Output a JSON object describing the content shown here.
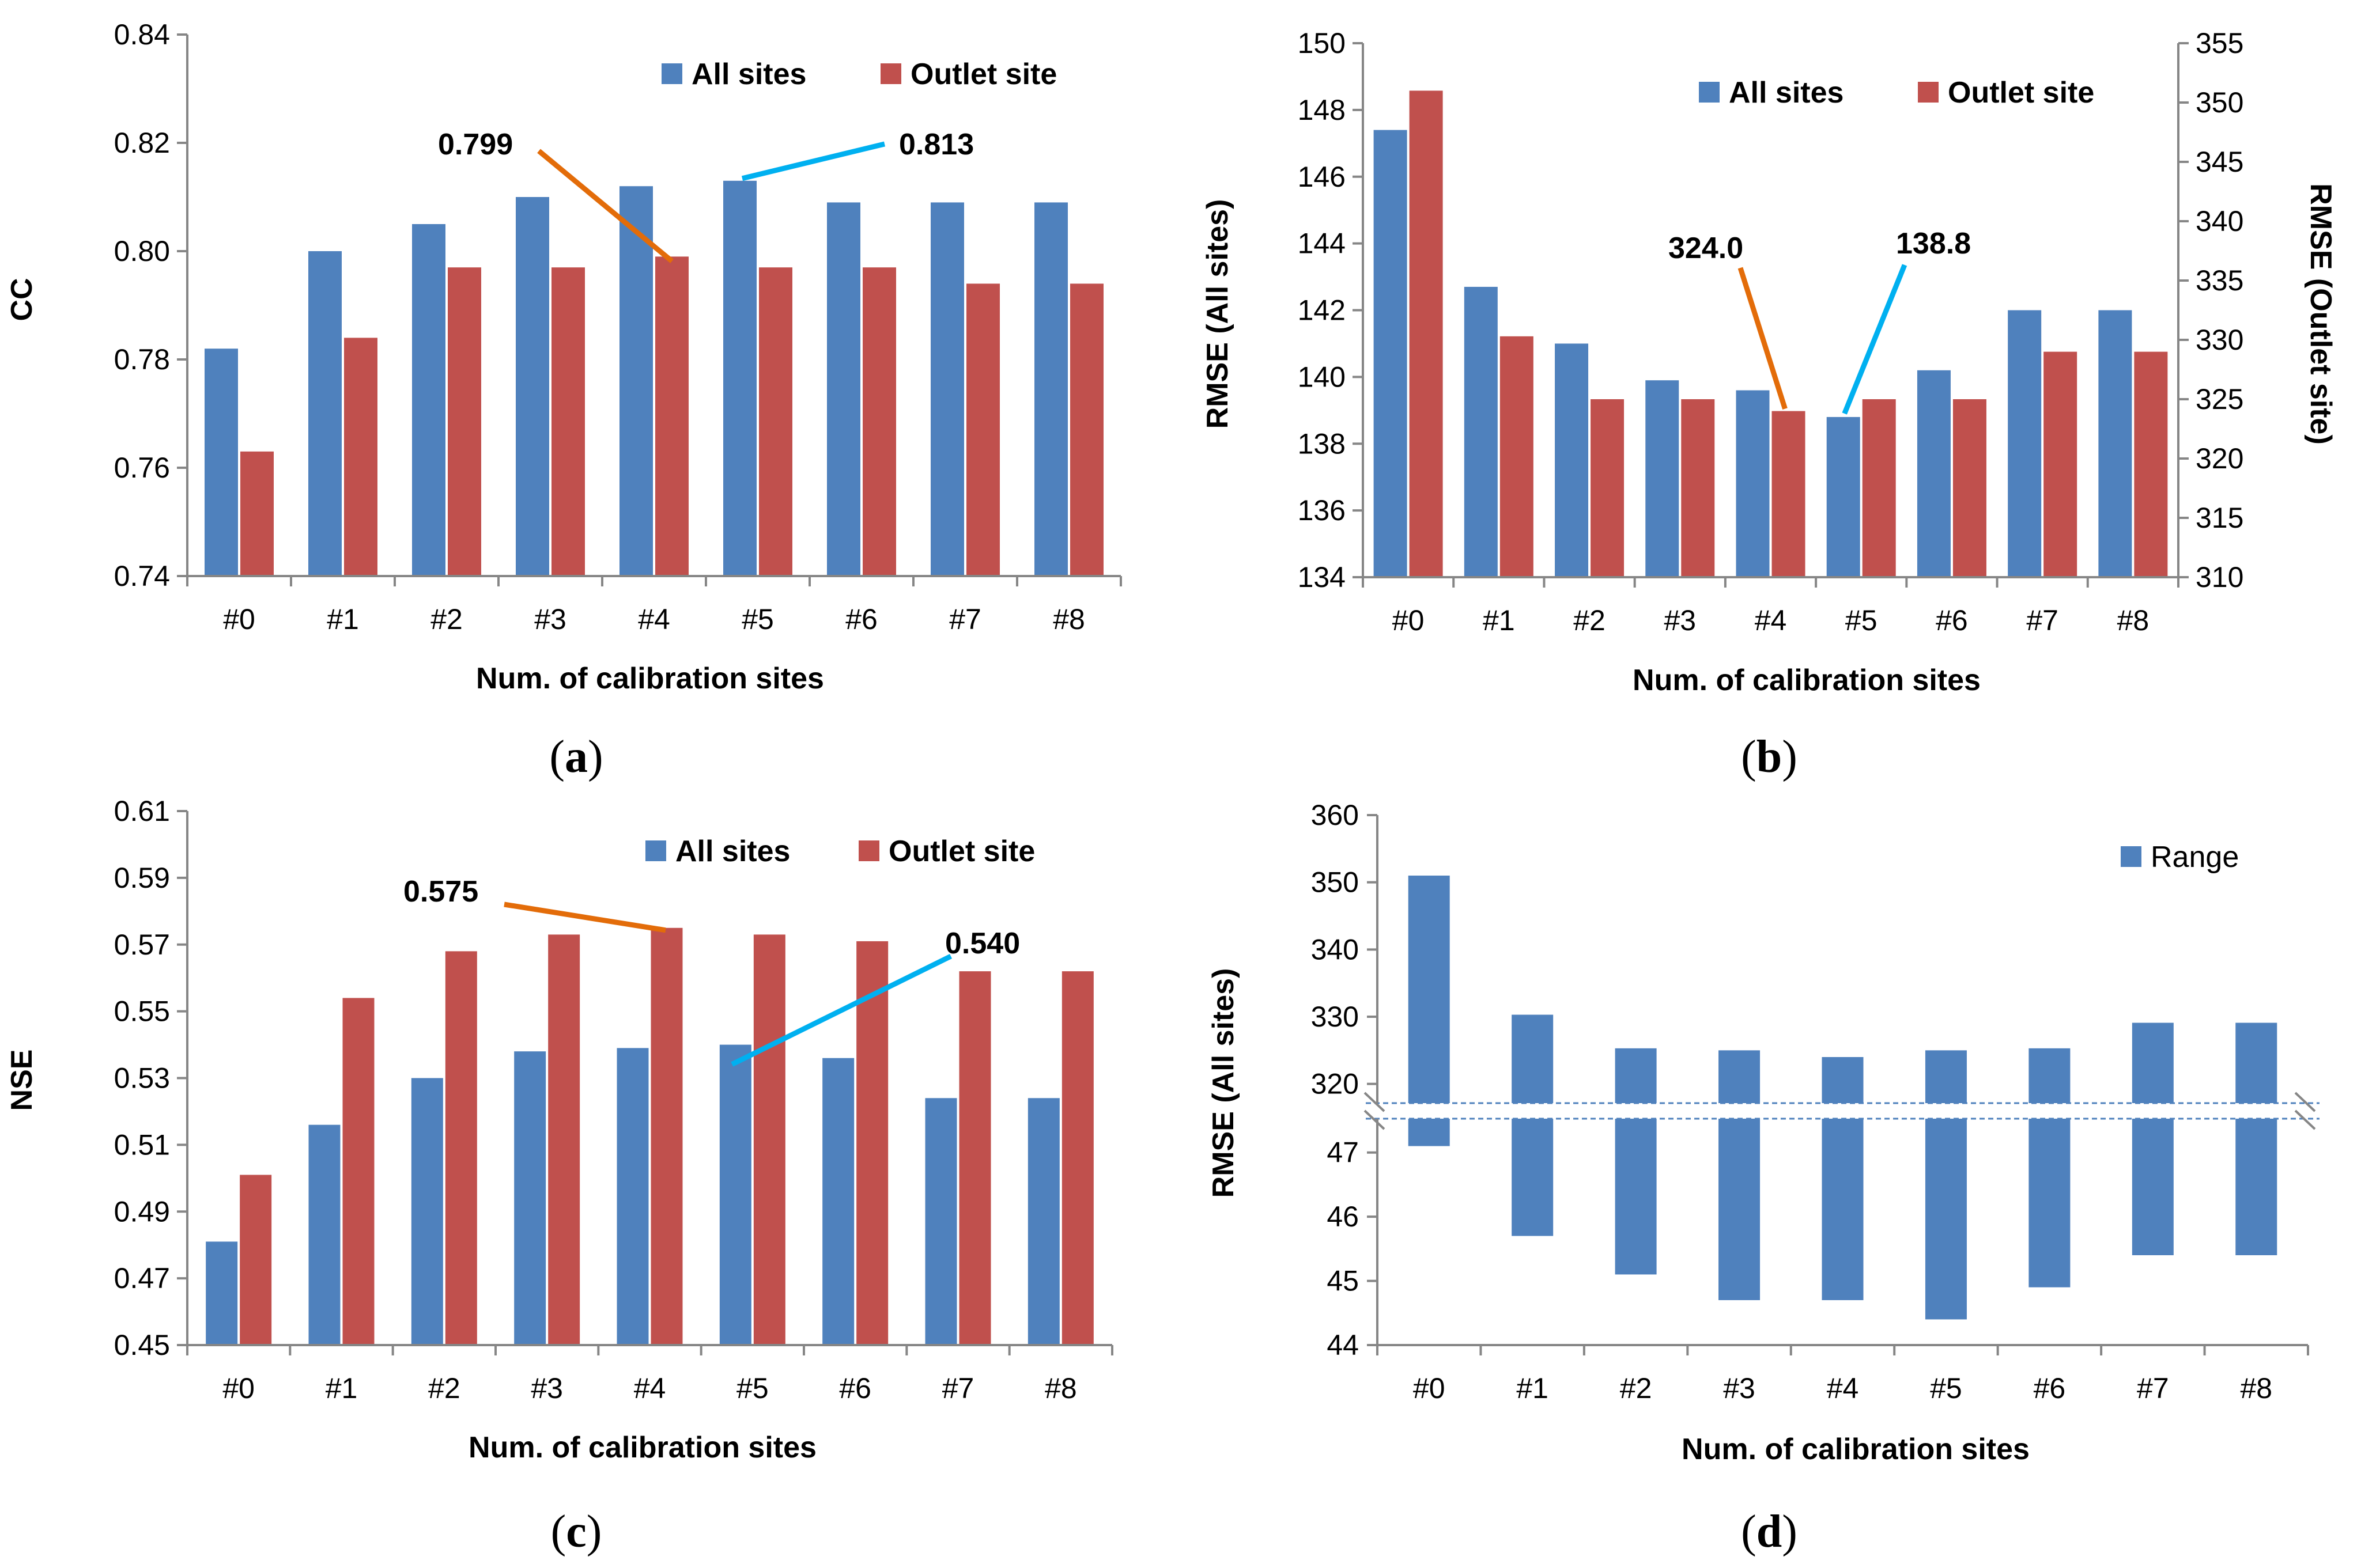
{
  "colors": {
    "all_sites": "#4F81BD",
    "outlet_site": "#C0504D",
    "cc_callout": "#E36C09",
    "cyan_callout": "#00B0F0",
    "axis": "#868686"
  },
  "chart_data": [
    {
      "panel": "a",
      "caption_letter": "a",
      "type": "bar",
      "categories": [
        "#0",
        "#1",
        "#2",
        "#3",
        "#4",
        "#5",
        "#6",
        "#7",
        "#8"
      ],
      "series": [
        {
          "name": "All sites",
          "values": [
            0.782,
            0.8,
            0.805,
            0.81,
            0.812,
            0.813,
            0.809,
            0.809,
            0.809
          ]
        },
        {
          "name": "Outlet site",
          "values": [
            0.763,
            0.784,
            0.797,
            0.797,
            0.799,
            0.797,
            0.797,
            0.794,
            0.794
          ]
        }
      ],
      "xlabel": "Num. of calibration sites",
      "ylabel": "CC",
      "ylim": [
        0.74,
        0.84
      ],
      "yticks": [
        "0.74",
        "0.76",
        "0.78",
        "0.80",
        "0.82",
        "0.84"
      ],
      "legend": [
        "All sites",
        "Outlet site"
      ],
      "annotations": [
        {
          "text": "0.799",
          "series": "Outlet site",
          "category": "#4",
          "color": "orange"
        },
        {
          "text": "0.813",
          "series": "All sites",
          "category": "#5",
          "color": "cyan"
        }
      ]
    },
    {
      "panel": "b",
      "caption_letter": "b",
      "type": "bar",
      "categories": [
        "#0",
        "#1",
        "#2",
        "#3",
        "#4",
        "#5",
        "#6",
        "#7",
        "#8"
      ],
      "series": [
        {
          "name": "All sites",
          "axis": "left",
          "values": [
            147.4,
            142.7,
            141.0,
            139.9,
            139.6,
            138.8,
            140.2,
            142.0,
            142.0
          ]
        },
        {
          "name": "Outlet site",
          "axis": "right",
          "values": [
            351.0,
            330.3,
            325.0,
            325.0,
            324.0,
            325.0,
            325.0,
            329.0,
            329.0
          ]
        }
      ],
      "xlabel": "Num. of calibration sites",
      "ylabel": "RMSE (All sites)",
      "ylabel_right": "RMSE (Outlet site)",
      "ylim": [
        134,
        150
      ],
      "ylim_right": [
        310,
        355
      ],
      "yticks": [
        "134",
        "136",
        "138",
        "140",
        "142",
        "144",
        "146",
        "148",
        "150"
      ],
      "yticks_right": [
        "310",
        "315",
        "320",
        "325",
        "330",
        "335",
        "340",
        "345",
        "350",
        "355"
      ],
      "legend": [
        "All sites",
        "Outlet site"
      ],
      "annotations": [
        {
          "text": "324.0",
          "series": "Outlet site",
          "category": "#4",
          "color": "orange"
        },
        {
          "text": "138.8",
          "series": "All sites",
          "category": "#5",
          "color": "cyan"
        }
      ]
    },
    {
      "panel": "c",
      "caption_letter": "c",
      "type": "bar",
      "categories": [
        "#0",
        "#1",
        "#2",
        "#3",
        "#4",
        "#5",
        "#6",
        "#7",
        "#8"
      ],
      "series": [
        {
          "name": "All sites",
          "values": [
            0.481,
            0.516,
            0.53,
            0.538,
            0.539,
            0.54,
            0.536,
            0.524,
            0.524
          ]
        },
        {
          "name": "Outlet site",
          "values": [
            0.501,
            0.554,
            0.568,
            0.573,
            0.575,
            0.573,
            0.571,
            0.562,
            0.562
          ]
        }
      ],
      "xlabel": "Num. of calibration sites",
      "ylabel": "NSE",
      "ylim": [
        0.45,
        0.61
      ],
      "yticks": [
        "0.45",
        "0.47",
        "0.49",
        "0.51",
        "0.53",
        "0.55",
        "0.57",
        "0.59",
        "0.61"
      ],
      "legend": [
        "All sites",
        "Outlet site"
      ],
      "annotations": [
        {
          "text": "0.575",
          "series": "Outlet site",
          "category": "#4",
          "color": "orange"
        },
        {
          "text": "0.540",
          "series": "All sites",
          "category": "#5",
          "color": "cyan"
        }
      ]
    },
    {
      "panel": "d",
      "caption_letter": "d",
      "type": "bar",
      "categories": [
        "#0",
        "#1",
        "#2",
        "#3",
        "#4",
        "#5",
        "#6",
        "#7",
        "#8"
      ],
      "series": [
        {
          "name": "Range",
          "min": [
            47.1,
            45.7,
            45.1,
            44.7,
            44.7,
            44.4,
            44.9,
            45.4,
            45.4
          ],
          "max": [
            351.0,
            330.3,
            325.3,
            325.0,
            324.0,
            325.0,
            325.3,
            329.1,
            329.1
          ]
        }
      ],
      "xlabel": "Num. of calibration sites",
      "ylabel": "RMSE (All sites)",
      "broken_axis": {
        "upper": [
          318,
          360
        ],
        "lower": [
          44,
          47.5
        ]
      },
      "yticks_upper": [
        "320",
        "330",
        "340",
        "350",
        "360"
      ],
      "yticks_lower": [
        "44",
        "45",
        "46",
        "47"
      ],
      "legend": [
        "Range"
      ]
    }
  ]
}
